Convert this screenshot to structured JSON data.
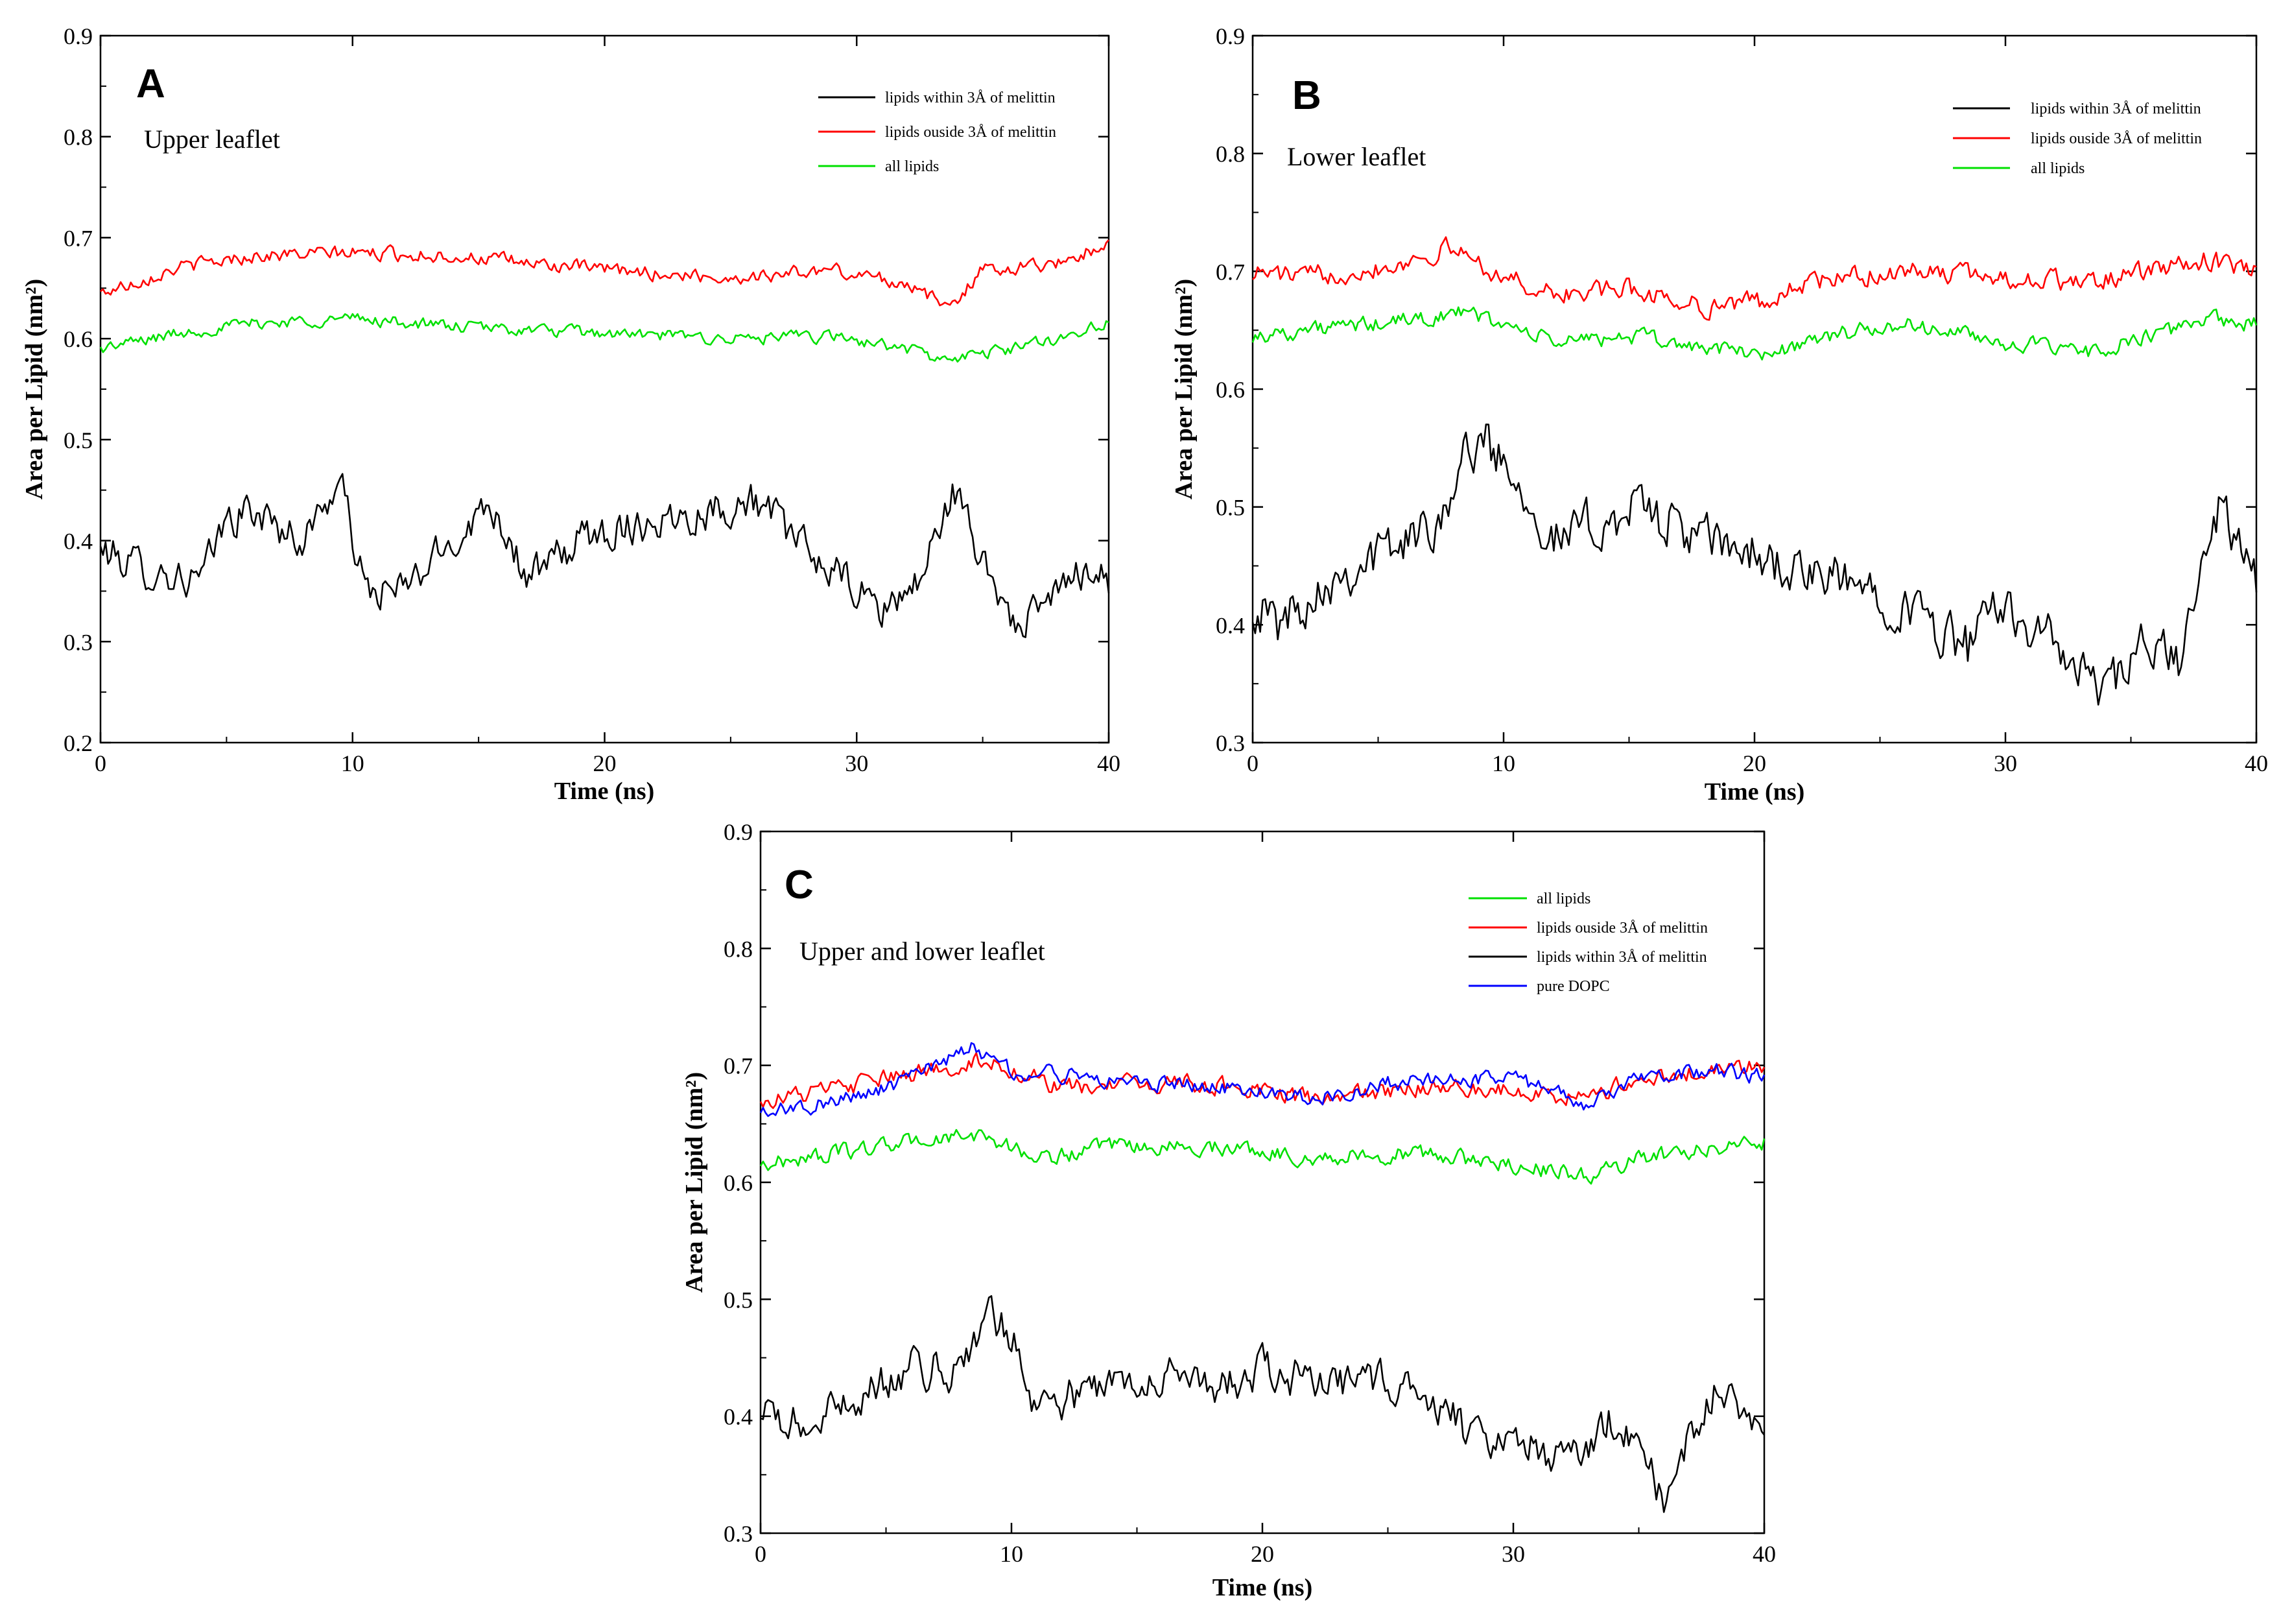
{
  "figure": {
    "series_colors": {
      "within": "#000000",
      "outside": "#ff0000",
      "all": "#00e000",
      "pure": "#0000ff"
    }
  },
  "chart_data": [
    {
      "id": "A",
      "type": "line",
      "panel_label": "A",
      "annotation": "Upper leaflet",
      "xlabel": "Time (ns)",
      "ylabel": "Area per Lipid (nm²)",
      "xlim": [
        0,
        40
      ],
      "ylim": [
        0.2,
        0.9
      ],
      "xticks": [
        0,
        10,
        20,
        30,
        40
      ],
      "yticks": [
        0.2,
        0.3,
        0.4,
        0.5,
        0.6,
        0.7,
        0.8,
        0.9
      ],
      "legend": [
        "lipids within 3Å of melittin",
        "lipids ouside 3Å of melittin",
        "all lipids"
      ],
      "series": [
        {
          "key": "within",
          "name": "lipids within 3Å of melittin",
          "color": "#000000",
          "x": [
            0,
            2,
            4,
            5,
            6,
            8,
            9.5,
            10.5,
            12,
            14,
            15.5,
            17,
            19,
            20,
            22,
            24,
            26,
            28,
            30,
            31,
            32.5,
            33.8,
            35,
            36.5,
            38,
            39.5,
            40
          ],
          "y": [
            0.39,
            0.37,
            0.36,
            0.42,
            0.43,
            0.4,
            0.46,
            0.35,
            0.35,
            0.4,
            0.44,
            0.36,
            0.4,
            0.41,
            0.42,
            0.43,
            0.44,
            0.39,
            0.35,
            0.33,
            0.36,
            0.45,
            0.38,
            0.31,
            0.35,
            0.38,
            0.36
          ],
          "noise": 0.022
        },
        {
          "key": "outside",
          "name": "lipids ouside 3Å of melittin",
          "color": "#ff0000",
          "x": [
            0,
            3,
            6,
            10,
            14,
            20,
            25,
            29,
            32,
            33.6,
            35,
            38,
            40
          ],
          "y": [
            0.645,
            0.67,
            0.682,
            0.685,
            0.682,
            0.668,
            0.66,
            0.668,
            0.655,
            0.63,
            0.668,
            0.675,
            0.695
          ],
          "noise": 0.008
        },
        {
          "key": "all",
          "name": "all lipids",
          "color": "#00e000",
          "x": [
            0,
            3,
            6,
            10,
            14,
            20,
            25,
            29,
            32,
            33.5,
            36,
            38,
            40
          ],
          "y": [
            0.59,
            0.605,
            0.615,
            0.62,
            0.612,
            0.605,
            0.6,
            0.602,
            0.59,
            0.578,
            0.59,
            0.6,
            0.618
          ],
          "noise": 0.007
        }
      ]
    },
    {
      "id": "B",
      "type": "line",
      "panel_label": "B",
      "annotation": "Lower leaflet",
      "xlabel": "Time (ns)",
      "ylabel": "Area per Lipid (nm²)",
      "xlim": [
        0,
        40
      ],
      "ylim": [
        0.3,
        0.9
      ],
      "xticks": [
        0,
        10,
        20,
        30,
        40
      ],
      "yticks": [
        0.3,
        0.4,
        0.5,
        0.6,
        0.7,
        0.8,
        0.9
      ],
      "legend": [
        "lipids within 3Å of melittin",
        "lipids ouside 3Å of melittin",
        "all lipids"
      ],
      "series": [
        {
          "key": "within",
          "name": "lipids within 3Å of melittin",
          "color": "#000000",
          "x": [
            0,
            1,
            3,
            5,
            7,
            9,
            10.5,
            12,
            15.5,
            18,
            20,
            22,
            25,
            28.5,
            30,
            32.5,
            34,
            35.5,
            37,
            38.5,
            40
          ],
          "y": [
            0.42,
            0.4,
            0.44,
            0.46,
            0.48,
            0.56,
            0.53,
            0.47,
            0.5,
            0.47,
            0.46,
            0.44,
            0.43,
            0.38,
            0.42,
            0.37,
            0.34,
            0.38,
            0.37,
            0.5,
            0.44
          ],
          "noise": 0.025
        },
        {
          "key": "outside",
          "name": "lipids ouside 3Å of melittin",
          "color": "#ff0000",
          "x": [
            0,
            2,
            5.5,
            8,
            10,
            12,
            15,
            18,
            20.5,
            22,
            26,
            30,
            33,
            36,
            38,
            40
          ],
          "y": [
            0.7,
            0.695,
            0.705,
            0.72,
            0.695,
            0.68,
            0.685,
            0.67,
            0.675,
            0.69,
            0.7,
            0.695,
            0.69,
            0.7,
            0.71,
            0.7
          ],
          "noise": 0.01
        },
        {
          "key": "all",
          "name": "all lipids",
          "color": "#00e000",
          "x": [
            0,
            2,
            5,
            8.5,
            10,
            12,
            15,
            18,
            20.5,
            23,
            26,
            30,
            33,
            36,
            38,
            40
          ],
          "y": [
            0.645,
            0.65,
            0.655,
            0.665,
            0.655,
            0.64,
            0.645,
            0.635,
            0.63,
            0.645,
            0.655,
            0.64,
            0.63,
            0.645,
            0.66,
            0.655
          ],
          "noise": 0.008
        }
      ]
    },
    {
      "id": "C",
      "type": "line",
      "panel_label": "C",
      "annotation": "Upper and lower leaflet",
      "xlabel": "Time (ns)",
      "ylabel": "Area per Lipid (nm²)",
      "xlim": [
        0,
        40
      ],
      "ylim": [
        0.3,
        0.9
      ],
      "xticks": [
        0,
        10,
        20,
        30,
        40
      ],
      "yticks": [
        0.3,
        0.4,
        0.5,
        0.6,
        0.7,
        0.8,
        0.9
      ],
      "legend": [
        "all lipids",
        "lipids ouside 3Å of melittin",
        "lipids within 3Å of melittin",
        "pure DOPC"
      ],
      "series": [
        {
          "key": "all",
          "name": "all lipids",
          "color": "#00e000",
          "x": [
            0,
            3,
            6,
            9,
            11,
            14,
            19,
            22,
            26,
            30,
            33,
            35,
            38,
            40
          ],
          "y": [
            0.615,
            0.625,
            0.635,
            0.64,
            0.62,
            0.63,
            0.63,
            0.62,
            0.625,
            0.615,
            0.605,
            0.62,
            0.63,
            0.635
          ],
          "noise": 0.008
        },
        {
          "key": "outside",
          "name": "lipids ouside 3Å of melittin",
          "color": "#ff0000",
          "x": [
            0,
            3,
            5.5,
            9,
            12,
            16,
            20,
            22,
            26,
            30,
            33,
            35,
            38,
            40
          ],
          "y": [
            0.67,
            0.68,
            0.69,
            0.705,
            0.68,
            0.685,
            0.68,
            0.67,
            0.68,
            0.68,
            0.67,
            0.69,
            0.695,
            0.7
          ],
          "noise": 0.009
        },
        {
          "key": "within",
          "name": "lipids within 3Å of melittin",
          "color": "#000000",
          "x": [
            0,
            2,
            4,
            6,
            8,
            9,
            10,
            11,
            13,
            16,
            18,
            20,
            22,
            26,
            28.5,
            30,
            32,
            34,
            36,
            38,
            40
          ],
          "y": [
            0.4,
            0.39,
            0.42,
            0.44,
            0.44,
            0.49,
            0.47,
            0.41,
            0.42,
            0.44,
            0.42,
            0.44,
            0.43,
            0.43,
            0.38,
            0.39,
            0.36,
            0.4,
            0.33,
            0.42,
            0.4
          ],
          "noise": 0.02
        },
        {
          "key": "pure",
          "name": "pure DOPC",
          "color": "#0000ff",
          "x": [
            0,
            2,
            5,
            8.5,
            10,
            13,
            16,
            20,
            22,
            25,
            30,
            33,
            35,
            38,
            40
          ],
          "y": [
            0.66,
            0.665,
            0.68,
            0.715,
            0.695,
            0.69,
            0.685,
            0.68,
            0.67,
            0.685,
            0.69,
            0.665,
            0.69,
            0.695,
            0.69
          ],
          "noise": 0.008
        }
      ]
    }
  ]
}
